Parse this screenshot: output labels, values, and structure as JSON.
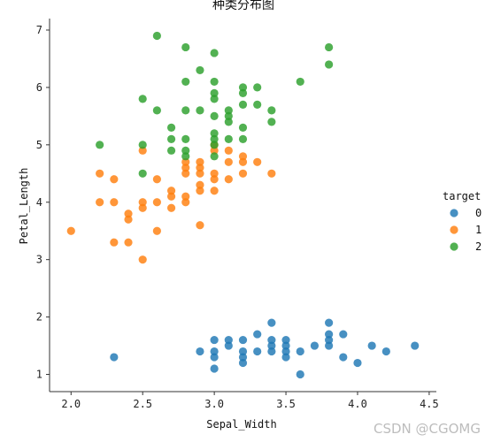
{
  "watermark": "CSDN @CGOMG",
  "chart_data": {
    "type": "scatter",
    "title": "种类分布图",
    "xlabel": "Sepal_Width",
    "ylabel": "Petal_Length",
    "xlim": [
      1.85,
      4.55
    ],
    "ylim": [
      0.7,
      7.2
    ],
    "xticks": [
      "2.0",
      "2.5",
      "3.0",
      "3.5",
      "4.0",
      "4.5"
    ],
    "yticks": [
      "1",
      "2",
      "3",
      "4",
      "5",
      "6",
      "7"
    ],
    "grid": false,
    "legend": {
      "title": "target",
      "position": "right"
    },
    "series": [
      {
        "name": "0",
        "color": "#1f77b4",
        "points": [
          [
            2.3,
            1.3
          ],
          [
            2.9,
            1.4
          ],
          [
            3.0,
            1.1
          ],
          [
            3.0,
            1.3
          ],
          [
            3.0,
            1.4
          ],
          [
            3.0,
            1.6
          ],
          [
            3.1,
            1.5
          ],
          [
            3.1,
            1.6
          ],
          [
            3.2,
            1.2
          ],
          [
            3.2,
            1.3
          ],
          [
            3.2,
            1.4
          ],
          [
            3.2,
            1.6
          ],
          [
            3.3,
            1.4
          ],
          [
            3.3,
            1.7
          ],
          [
            3.4,
            1.4
          ],
          [
            3.4,
            1.5
          ],
          [
            3.4,
            1.6
          ],
          [
            3.4,
            1.9
          ],
          [
            3.5,
            1.3
          ],
          [
            3.5,
            1.4
          ],
          [
            3.5,
            1.5
          ],
          [
            3.5,
            1.6
          ],
          [
            3.6,
            1.0
          ],
          [
            3.6,
            1.4
          ],
          [
            3.7,
            1.5
          ],
          [
            3.8,
            1.5
          ],
          [
            3.8,
            1.6
          ],
          [
            3.8,
            1.7
          ],
          [
            3.8,
            1.9
          ],
          [
            3.9,
            1.3
          ],
          [
            3.9,
            1.7
          ],
          [
            4.0,
            1.2
          ],
          [
            4.1,
            1.5
          ],
          [
            4.2,
            1.4
          ],
          [
            4.4,
            1.5
          ]
        ]
      },
      {
        "name": "1",
        "color": "#ff7f0e",
        "points": [
          [
            2.0,
            3.5
          ],
          [
            2.2,
            4.0
          ],
          [
            2.2,
            4.5
          ],
          [
            2.3,
            3.3
          ],
          [
            2.3,
            4.0
          ],
          [
            2.3,
            4.4
          ],
          [
            2.4,
            3.3
          ],
          [
            2.4,
            3.7
          ],
          [
            2.4,
            3.8
          ],
          [
            2.5,
            3.0
          ],
          [
            2.5,
            3.9
          ],
          [
            2.5,
            4.0
          ],
          [
            2.5,
            4.9
          ],
          [
            2.6,
            3.5
          ],
          [
            2.6,
            4.0
          ],
          [
            2.6,
            4.4
          ],
          [
            2.7,
            3.9
          ],
          [
            2.7,
            4.1
          ],
          [
            2.7,
            4.2
          ],
          [
            2.8,
            4.0
          ],
          [
            2.8,
            4.1
          ],
          [
            2.8,
            4.5
          ],
          [
            2.8,
            4.6
          ],
          [
            2.8,
            4.7
          ],
          [
            2.9,
            3.6
          ],
          [
            2.9,
            4.2
          ],
          [
            2.9,
            4.3
          ],
          [
            2.9,
            4.5
          ],
          [
            2.9,
            4.6
          ],
          [
            2.9,
            4.7
          ],
          [
            3.0,
            4.2
          ],
          [
            3.0,
            4.4
          ],
          [
            3.0,
            4.5
          ],
          [
            3.0,
            4.9
          ],
          [
            3.0,
            5.0
          ],
          [
            3.1,
            4.4
          ],
          [
            3.1,
            4.7
          ],
          [
            3.1,
            4.9
          ],
          [
            3.2,
            4.5
          ],
          [
            3.2,
            4.7
          ],
          [
            3.2,
            4.8
          ],
          [
            3.3,
            4.7
          ],
          [
            3.4,
            4.5
          ]
        ]
      },
      {
        "name": "2",
        "color": "#2ca02c",
        "points": [
          [
            2.2,
            5.0
          ],
          [
            2.5,
            4.5
          ],
          [
            2.5,
            5.0
          ],
          [
            2.5,
            5.8
          ],
          [
            2.6,
            5.6
          ],
          [
            2.6,
            6.9
          ],
          [
            2.7,
            4.9
          ],
          [
            2.7,
            5.1
          ],
          [
            2.7,
            5.3
          ],
          [
            2.8,
            4.8
          ],
          [
            2.8,
            4.9
          ],
          [
            2.8,
            5.1
          ],
          [
            2.8,
            5.6
          ],
          [
            2.8,
            6.1
          ],
          [
            2.8,
            6.7
          ],
          [
            2.9,
            5.6
          ],
          [
            2.9,
            6.3
          ],
          [
            3.0,
            4.8
          ],
          [
            3.0,
            5.0
          ],
          [
            3.0,
            5.1
          ],
          [
            3.0,
            5.2
          ],
          [
            3.0,
            5.5
          ],
          [
            3.0,
            5.8
          ],
          [
            3.0,
            5.9
          ],
          [
            3.0,
            6.1
          ],
          [
            3.0,
            6.6
          ],
          [
            3.1,
            5.1
          ],
          [
            3.1,
            5.4
          ],
          [
            3.1,
            5.5
          ],
          [
            3.1,
            5.6
          ],
          [
            3.2,
            5.1
          ],
          [
            3.2,
            5.3
          ],
          [
            3.2,
            5.7
          ],
          [
            3.2,
            5.9
          ],
          [
            3.2,
            6.0
          ],
          [
            3.3,
            5.7
          ],
          [
            3.3,
            6.0
          ],
          [
            3.4,
            5.4
          ],
          [
            3.4,
            5.6
          ],
          [
            3.6,
            6.1
          ],
          [
            3.8,
            6.4
          ],
          [
            3.8,
            6.7
          ]
        ]
      }
    ]
  }
}
